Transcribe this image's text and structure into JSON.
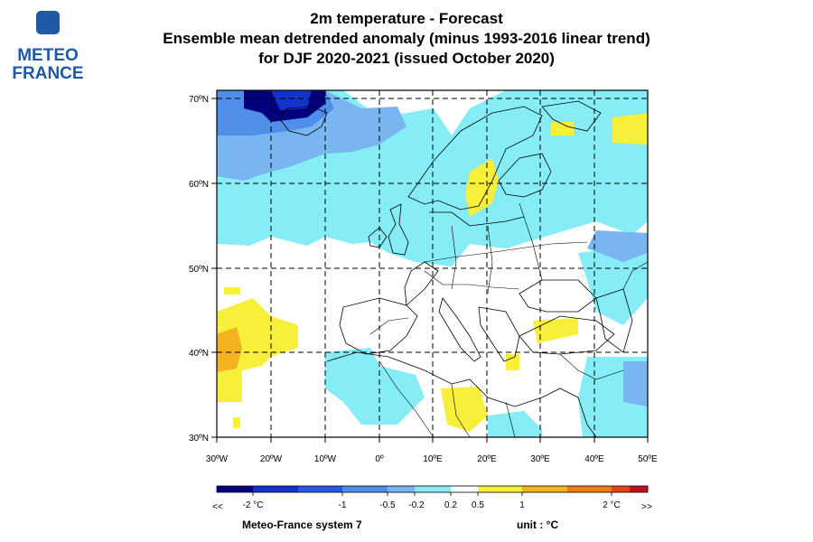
{
  "logo": {
    "line1": "METEO",
    "line2": "FRANCE",
    "badge_color": "#1f5aa6"
  },
  "title": {
    "line1": "2m temperature   -   Forecast",
    "line2": "Ensemble mean detrended anomaly (minus 1993-2016 linear trend)",
    "line3": "for DJF 2020-2021   (issued October 2020)"
  },
  "map": {
    "lat_labels": [
      "70ºN",
      "60ºN",
      "50ºN",
      "40ºN",
      "30ºN"
    ],
    "lon_labels": [
      "30ºW",
      "20ºW",
      "10ºW",
      "0º",
      "10ºE",
      "20ºE",
      "30ºE",
      "40ºE",
      "50ºE"
    ],
    "lat_range": [
      30,
      70
    ],
    "lon_range": [
      -30,
      50
    ],
    "grid": "dashed 10° graticule"
  },
  "colorbar": {
    "colors": [
      "#00007f",
      "#1233c9",
      "#2b57e8",
      "#4f8fe9",
      "#79b5f1",
      "#86ecf5",
      "#ffffff",
      "#f7ef3a",
      "#f3b320",
      "#ee7d12",
      "#e6431b",
      "#c01320"
    ],
    "labels": [
      "<<",
      "-2 °C",
      "-1",
      "-0.5",
      "-0.2",
      "0.2",
      "0.5",
      "1",
      "2 °C",
      ">>"
    ]
  },
  "footer": {
    "system": "Meteo-France system 7",
    "unit": "unit :  °C"
  }
}
